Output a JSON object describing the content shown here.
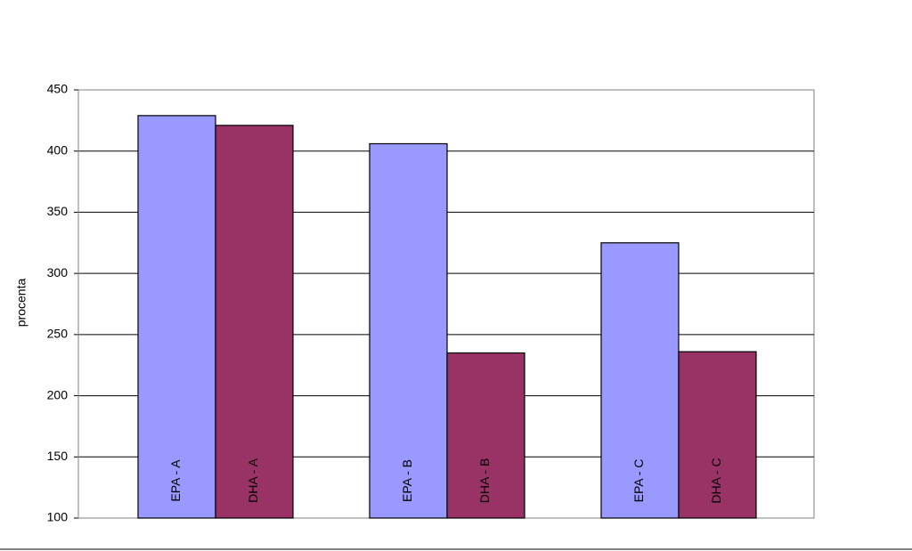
{
  "chart_data": {
    "type": "bar",
    "ylabel": "procenta",
    "categories": [
      null,
      null,
      null
    ],
    "series": [
      {
        "color": "#9999ff",
        "values": [
          429,
          406,
          325
        ],
        "labels": [
          "EPA - A",
          "EPA - B",
          "EPA - C"
        ]
      },
      {
        "color": "#993366",
        "values": [
          421,
          235,
          236
        ],
        "labels": [
          "DHA - A",
          "DHA - B",
          "DHA - C"
        ]
      }
    ],
    "ylim": [
      100,
      450
    ],
    "yticks": [
      100,
      150,
      200,
      250,
      300,
      350,
      400,
      450
    ],
    "grid": true
  }
}
